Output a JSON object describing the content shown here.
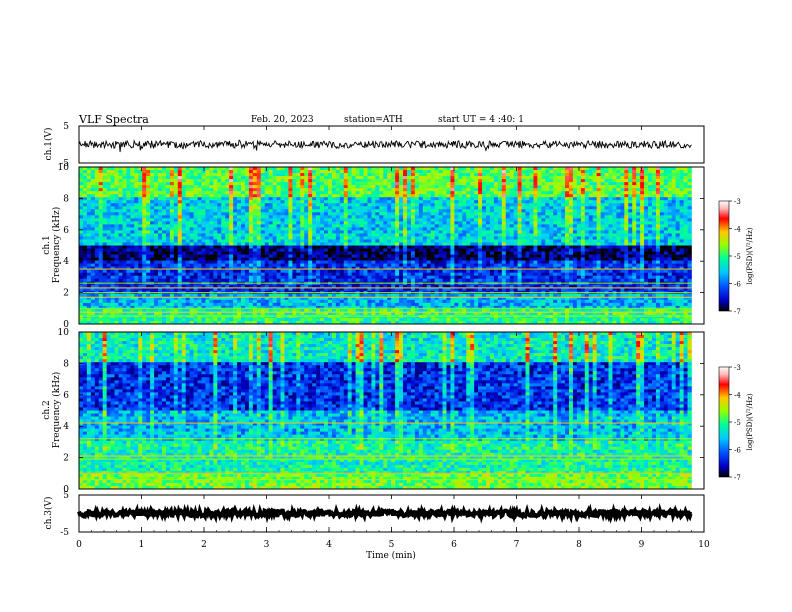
{
  "header": {
    "title": "VLF  Spectra",
    "date": "Feb. 20, 2023",
    "station": "station=ATH",
    "start_ut": "start  UT  =   4  :40: 1"
  },
  "colors": {
    "colormap": [
      "#000000",
      "#0000c8",
      "#0050ff",
      "#00c8ff",
      "#00ff96",
      "#96ff00",
      "#ffc800",
      "#ff0000",
      "#ffb4b4",
      "#ffffff"
    ]
  },
  "chart_data": [
    {
      "type": "line",
      "panel": "ch1-waveform",
      "ylabel": "ch.1(V)",
      "ylim": [
        -5,
        5
      ],
      "yticks": [
        5,
        -5
      ],
      "x_range_min": [
        0,
        9.8
      ],
      "y_typical": [
        -1.0,
        1.0
      ],
      "grid": false
    },
    {
      "type": "heatmap",
      "panel": "ch1-spectrogram",
      "ylabel_line1": "ch.1",
      "ylabel_line2": "Frequency  (kHz)",
      "ylim": [
        0,
        10
      ],
      "yticks": [
        0,
        2,
        4,
        6,
        8,
        10
      ],
      "colorbar": {
        "label": "log(PSD)(V²/Hz)",
        "range": [
          -7,
          -3
        ],
        "ticks": [
          -3,
          -4,
          -5,
          -6,
          -7
        ]
      },
      "bands": [
        {
          "f_min": 4.0,
          "f_max": 5.0,
          "logpsd": -6.8
        },
        {
          "f_min": 2.0,
          "f_max": 4.0,
          "logpsd": -6.3
        },
        {
          "f_min": 5.0,
          "f_max": 8.0,
          "logpsd": -5.6
        },
        {
          "f_min": 8.0,
          "f_max": 10.0,
          "logpsd": -5.0
        },
        {
          "f_min": 1.0,
          "f_max": 2.0,
          "logpsd": -5.7
        },
        {
          "f_min": 0.0,
          "f_max": 1.0,
          "logpsd": -5.2
        }
      ],
      "lines_khz": [
        0.5,
        0.75,
        1.0,
        1.7,
        2.0,
        2.3,
        2.6,
        3.5
      ]
    },
    {
      "type": "heatmap",
      "panel": "ch2-spectrogram",
      "ylabel_line1": "ch.2",
      "ylabel_line2": "Frequency  (kHz)",
      "ylim": [
        0,
        10
      ],
      "yticks": [
        0,
        2,
        4,
        6,
        8,
        10
      ],
      "colorbar": {
        "label": "log(PSD)(V²/Hz)",
        "range": [
          -7,
          -3
        ],
        "ticks": [
          -3,
          -4,
          -5,
          -6,
          -7
        ]
      },
      "bands": [
        {
          "f_min": 5.0,
          "f_max": 8.0,
          "logpsd": -6.3
        },
        {
          "f_min": 8.0,
          "f_max": 10.0,
          "logpsd": -5.4
        },
        {
          "f_min": 3.0,
          "f_max": 5.0,
          "logpsd": -5.7
        },
        {
          "f_min": 1.0,
          "f_max": 3.0,
          "logpsd": -5.3
        },
        {
          "f_min": 0.0,
          "f_max": 1.0,
          "logpsd": -4.9
        }
      ],
      "lines_khz": [
        0.6,
        1.0,
        1.9,
        2.1,
        3.2,
        4.2
      ]
    },
    {
      "type": "line",
      "panel": "ch3-waveform",
      "ylabel": "ch.3(V)",
      "xlabel": "Time  (min)",
      "ylim": [
        -5,
        5
      ],
      "yticks": [
        5,
        -5
      ],
      "xlim": [
        0,
        10
      ],
      "xticks": [
        0,
        1,
        2,
        3,
        4,
        5,
        6,
        7,
        8,
        9,
        10
      ],
      "x_range_min": [
        0,
        9.8
      ],
      "y_typical": [
        -0.8,
        0.8
      ],
      "grid": false
    }
  ]
}
